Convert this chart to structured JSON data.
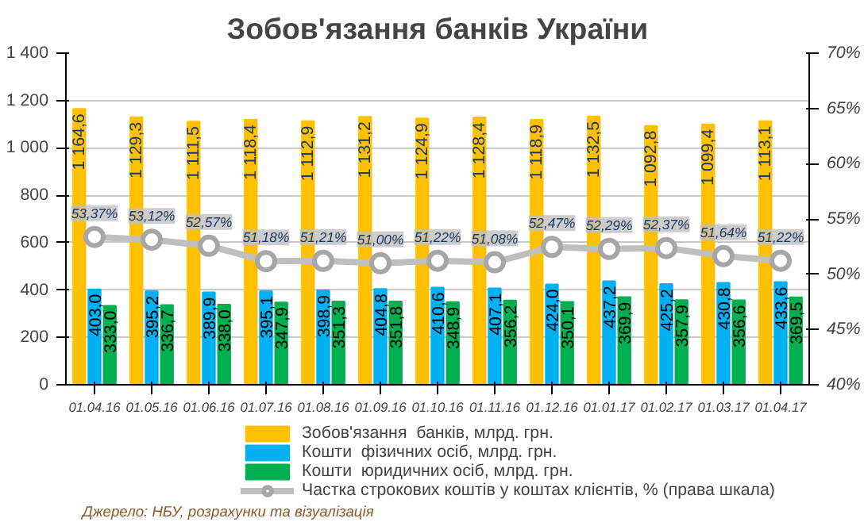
{
  "chart_data": {
    "type": "bar",
    "title": "Зобов'язання банків України",
    "categories": [
      "01.04.16",
      "01.05.16",
      "01.06.16",
      "01.07.16",
      "01.08.16",
      "01.09.16",
      "01.10.16",
      "01.11.16",
      "01.12.16",
      "01.01.17",
      "01.02.17",
      "01.03.17",
      "01.04.17"
    ],
    "series": [
      {
        "name": "Зобов'язання  банків, млрд. грн.",
        "color": "#ffc000",
        "values": [
          1164.6,
          1129.3,
          1111.5,
          1118.4,
          1112.9,
          1131.2,
          1124.9,
          1128.4,
          1118.9,
          1132.5,
          1092.8,
          1099.4,
          1113.1
        ],
        "value_labels": [
          "1 164,6",
          "1 129,3",
          "1 111,5",
          "1 118,4",
          "1 112,9",
          "1 131,2",
          "1 124,9",
          "1 128,4",
          "1 118,9",
          "1 132,5",
          "1 092,8",
          "1 099,4",
          "1 113,1"
        ]
      },
      {
        "name": "Кошти  фізичних осіб, млрд. грн.",
        "color": "#00b0f0",
        "values": [
          403.0,
          395.2,
          389.9,
          395.1,
          398.9,
          404.8,
          410.6,
          407.1,
          424.0,
          437.2,
          425.2,
          430.8,
          433.6
        ],
        "value_labels": [
          "403,0",
          "395,2",
          "389,9",
          "395,1",
          "398,9",
          "404,8",
          "410,6",
          "407,1",
          "424,0",
          "437,2",
          "425,2",
          "430,8",
          "433,6"
        ]
      },
      {
        "name": "Кошти  юридичних осіб, млрд. грн.",
        "color": "#00b050",
        "values": [
          333.0,
          336.7,
          338.0,
          347.9,
          351.3,
          351.8,
          348.9,
          356.2,
          350.1,
          369.9,
          357.9,
          356.6,
          369.5
        ],
        "value_labels": [
          "333,0",
          "336,7",
          "338,0",
          "347,9",
          "351,3",
          "351,8",
          "348,9",
          "356,2",
          "350,1",
          "369,9",
          "357,9",
          "356,6",
          "369,5"
        ]
      },
      {
        "name": "Частка строкових коштів у коштах клієнтів, % (права шкала)",
        "color": "#bfbfbf",
        "type": "line",
        "axis": "y2",
        "marker": "circle",
        "values": [
          53.37,
          53.12,
          52.57,
          51.18,
          51.21,
          51.0,
          51.22,
          51.08,
          52.47,
          52.29,
          52.37,
          51.64,
          51.22
        ],
        "value_labels": [
          "53,37%",
          "53,12%",
          "52,57%",
          "51,18%",
          "51,21%",
          "51,00%",
          "51,22%",
          "51,08%",
          "52,47%",
          "52,29%",
          "52,37%",
          "51,64%",
          "51,22%"
        ]
      }
    ],
    "ylim": [
      0,
      1400
    ],
    "yticks": [
      0,
      200,
      400,
      600,
      800,
      {
        "value": 1000,
        "label": "1 000"
      },
      {
        "value": 1200,
        "label": "1 200"
      },
      {
        "value": 1400,
        "label": "1 400"
      }
    ],
    "y2lim": [
      40,
      70
    ],
    "y2ticks": [
      {
        "value": 40,
        "label": "40%"
      },
      {
        "value": 45,
        "label": "45%"
      },
      {
        "value": 50,
        "label": "50%"
      },
      {
        "value": 55,
        "label": "55%"
      },
      {
        "value": 60,
        "label": "60%"
      },
      {
        "value": 65,
        "label": "65%"
      },
      {
        "value": 70,
        "label": "70%"
      }
    ],
    "grid": "y",
    "legend": "bottom",
    "annotations": [
      "Джерело: НБУ, розрахунки та візуалізація"
    ]
  }
}
